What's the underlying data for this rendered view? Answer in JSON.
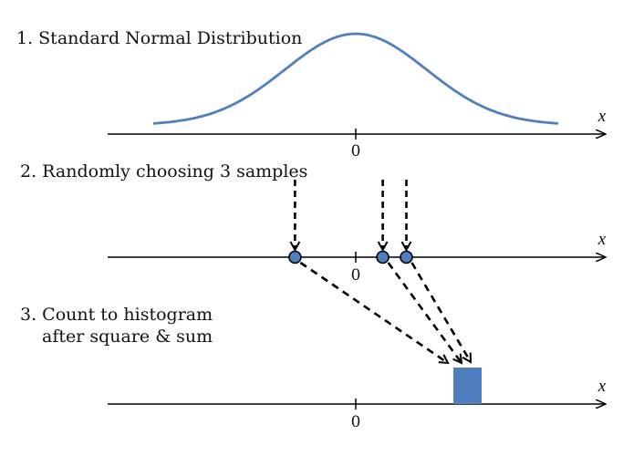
{
  "step1": {
    "title": "1. Standard Normal Distribution"
  },
  "step2": {
    "title": "2. Randomly choosing 3 samples"
  },
  "step3": {
    "title_line1": "3. Count to histogram",
    "title_line2": "after square & sum"
  },
  "axes": {
    "variable": "x",
    "origin_label": "0"
  },
  "samples": [
    -0.9,
    0.4,
    0.75
  ],
  "colors": {
    "curve": "#4f7fbf",
    "sample_fill": "#4f7fbf",
    "histogram_bar": "#4f7fbf",
    "axis": "#000000",
    "arrow": "#000000"
  }
}
